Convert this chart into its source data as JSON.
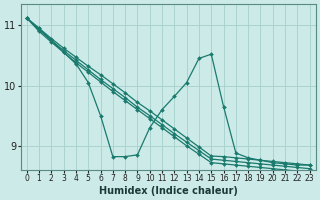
{
  "xlabel": "Humidex (Indice chaleur)",
  "bg_color": "#cceae7",
  "grid_color": "#aad4d0",
  "line_color": "#1a7a6e",
  "xlim": [
    -0.5,
    23.5
  ],
  "ylim": [
    8.6,
    11.35
  ],
  "yticks": [
    9,
    10,
    11
  ],
  "xticks": [
    0,
    1,
    2,
    3,
    4,
    5,
    6,
    7,
    8,
    9,
    10,
    11,
    12,
    13,
    14,
    15,
    16,
    17,
    18,
    19,
    20,
    21,
    22,
    23
  ],
  "lines": [
    [
      11.12,
      10.95,
      10.78,
      10.62,
      10.47,
      10.32,
      10.18,
      10.03,
      9.88,
      9.72,
      9.58,
      9.43,
      9.28,
      9.13,
      8.98,
      8.83,
      8.82,
      8.8,
      8.78,
      8.76,
      8.74,
      8.72,
      8.7,
      8.68
    ],
    [
      11.12,
      10.92,
      10.75,
      10.58,
      10.42,
      10.26,
      10.1,
      9.95,
      9.8,
      9.64,
      9.5,
      9.35,
      9.2,
      9.06,
      8.92,
      8.78,
      8.76,
      8.74,
      8.72,
      8.7,
      8.68,
      8.66,
      8.64,
      8.62
    ],
    [
      11.12,
      10.9,
      10.72,
      10.55,
      10.38,
      10.22,
      10.06,
      9.9,
      9.75,
      9.6,
      9.45,
      9.3,
      9.15,
      9.0,
      8.86,
      8.72,
      8.7,
      8.68,
      8.66,
      8.64,
      8.62,
      8.6,
      8.58,
      8.57
    ],
    [
      11.12,
      10.95,
      10.75,
      10.55,
      10.36,
      10.05,
      9.5,
      8.82,
      8.82,
      8.85,
      9.3,
      9.6,
      9.82,
      10.05,
      10.45,
      10.52,
      9.65,
      8.88,
      8.8,
      8.76,
      8.72,
      8.7,
      8.68,
      8.68
    ]
  ]
}
